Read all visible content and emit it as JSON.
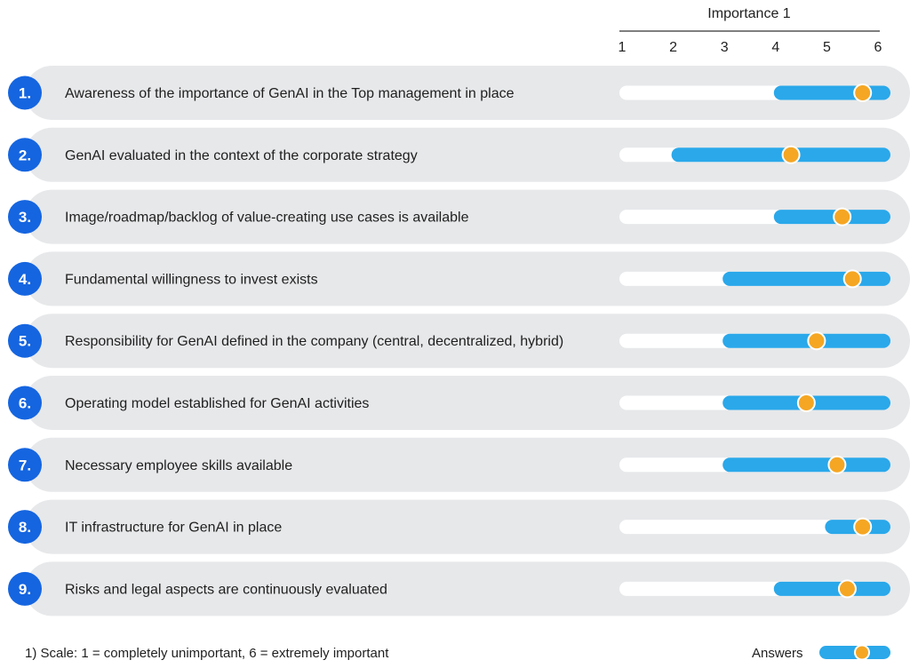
{
  "chart_data": {
    "type": "range-dot",
    "axis_title": "Importance 1",
    "ticks": [
      1,
      2,
      3,
      4,
      5,
      6
    ],
    "xlim": [
      1,
      6
    ],
    "rows": [
      {
        "num": "1.",
        "label": "Awareness of the importance of GenAI  in the Top management in place",
        "range": [
          4,
          6
        ],
        "answer": 5.7
      },
      {
        "num": "2.",
        "label": "GenAI evaluated in the context of the  corporate strategy",
        "range": [
          2,
          6
        ],
        "answer": 4.3
      },
      {
        "num": "3.",
        "label": "Image/roadmap/backlog of value-creating use cases is available",
        "range": [
          4,
          6
        ],
        "answer": 5.3
      },
      {
        "num": "4.",
        "label": "Fundamental willingness to invest exists",
        "range": [
          3,
          6
        ],
        "answer": 5.5
      },
      {
        "num": "5.",
        "label": "Responsibility for GenAI defined in the  company (central, decentralized, hybrid)",
        "range": [
          3,
          6
        ],
        "answer": 4.8
      },
      {
        "num": "6.",
        "label": "Operating model established for GenAI activities",
        "range": [
          3,
          6
        ],
        "answer": 4.6
      },
      {
        "num": "7.",
        "label": "Necessary employee skills available",
        "range": [
          3,
          6
        ],
        "answer": 5.2
      },
      {
        "num": "8.",
        "label": "IT infrastructure for GenAI in place",
        "range": [
          5,
          6
        ],
        "answer": 5.7
      },
      {
        "num": "9.",
        "label": "Risks and legal aspects are continuously evaluated",
        "range": [
          4,
          6
        ],
        "answer": 5.4
      }
    ],
    "footnote": "1) Scale: 1 = completely unimportant, 6 = extremely important",
    "legend_label": "Answers",
    "colors": {
      "row_bg": "#e7e8ea",
      "track": "#ffffff",
      "range_bar": "#2aa8ea",
      "dot": "#f5a623",
      "dot_stroke": "#ffffff",
      "num_circle": "#1565e0"
    }
  }
}
